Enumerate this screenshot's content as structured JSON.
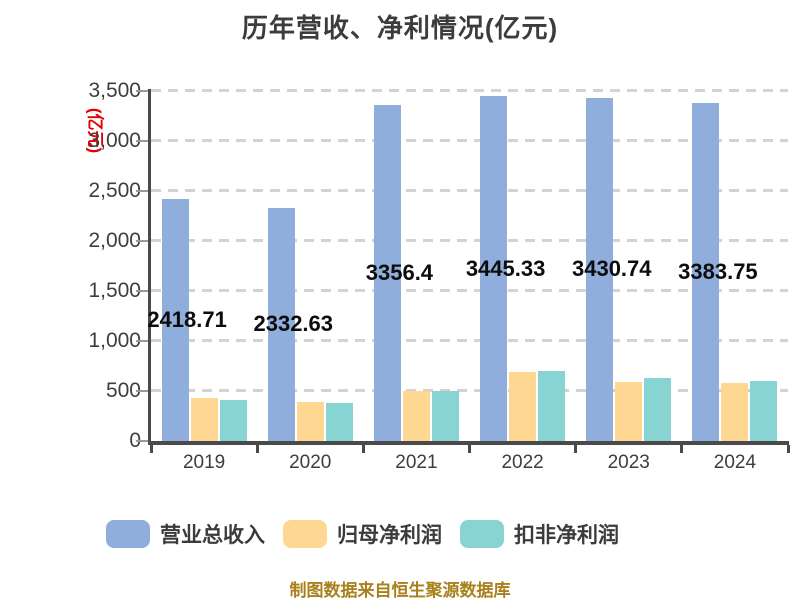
{
  "title": "历年营收、净利情况(亿元)",
  "y_axis_unit_label": "(亿元)",
  "footer": "制图数据来自恒生聚源数据库",
  "legend": {
    "items": [
      {
        "label": "营业总收入",
        "color": "#8FAEDC"
      },
      {
        "label": "归母净利润",
        "color": "#FED893"
      },
      {
        "label": "扣非净利润",
        "color": "#87D4D2"
      }
    ]
  },
  "chart_data": {
    "type": "bar",
    "title": "历年营收、净利情况(亿元)",
    "categories": [
      "2019",
      "2020",
      "2021",
      "2022",
      "2023",
      "2024"
    ],
    "series": [
      {
        "name": "营业总收入",
        "key": "total-revenue",
        "color": "#8FAEDC",
        "values": [
          2418.71,
          2332.63,
          3356.4,
          3445.33,
          3430.74,
          3383.75
        ],
        "data_labels": [
          "2418.71",
          "2332.63",
          "3356.4",
          "3445.33",
          "3430.74",
          "3383.75"
        ]
      },
      {
        "name": "归母净利润",
        "key": "net-profit-attributable",
        "color": "#FED893",
        "values": [
          430,
          395,
          505,
          690,
          590,
          585
        ],
        "values_estimated_from_gridlines": true
      },
      {
        "name": "扣非净利润",
        "key": "non-gaap-net-profit",
        "color": "#87D4D2",
        "values": [
          415,
          385,
          500,
          700,
          630,
          600
        ],
        "values_estimated_from_gridlines": true
      }
    ],
    "ylim": [
      0,
      3500
    ],
    "ytick_step": 500,
    "ytick_labels": [
      "0",
      "500",
      "1,000",
      "1,500",
      "2,000",
      "2,500",
      "3,000",
      "3,500"
    ],
    "xlabel": "",
    "ylabel": "(亿元)",
    "grid": "horizontal-dashed",
    "legend_position": "bottom"
  }
}
